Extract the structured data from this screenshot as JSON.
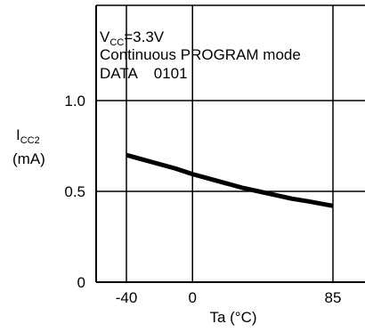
{
  "chart_data": {
    "type": "line",
    "title": "",
    "annotations": [
      {
        "text": "CC",
        "prefix": "V",
        "suffix": "=3.3V"
      },
      {
        "text": "Continuous PROGRAM mode"
      },
      {
        "text": "DATA    0101"
      }
    ],
    "ylabel": {
      "main": "I",
      "sub": "CC2",
      "unit": "(mA)"
    },
    "xlabel": "Ta (°C)",
    "xlim": [
      -55,
      90
    ],
    "ylim": [
      0,
      1.0
    ],
    "x_ticks": [
      -40,
      0,
      85
    ],
    "x_tick_labels": [
      "-40",
      "0",
      "85"
    ],
    "y_ticks": [
      0,
      0.5,
      1.0
    ],
    "y_tick_labels": [
      "0",
      "0.5",
      "1.0"
    ],
    "grid": true,
    "series": [
      {
        "x": [
          -40,
          -30,
          -20,
          -10,
          0,
          10,
          20,
          30,
          40,
          50,
          60,
          70,
          85
        ],
        "values": [
          0.7,
          0.675,
          0.65,
          0.625,
          0.595,
          0.57,
          0.545,
          0.52,
          0.5,
          0.48,
          0.46,
          0.445,
          0.42
        ]
      }
    ]
  }
}
